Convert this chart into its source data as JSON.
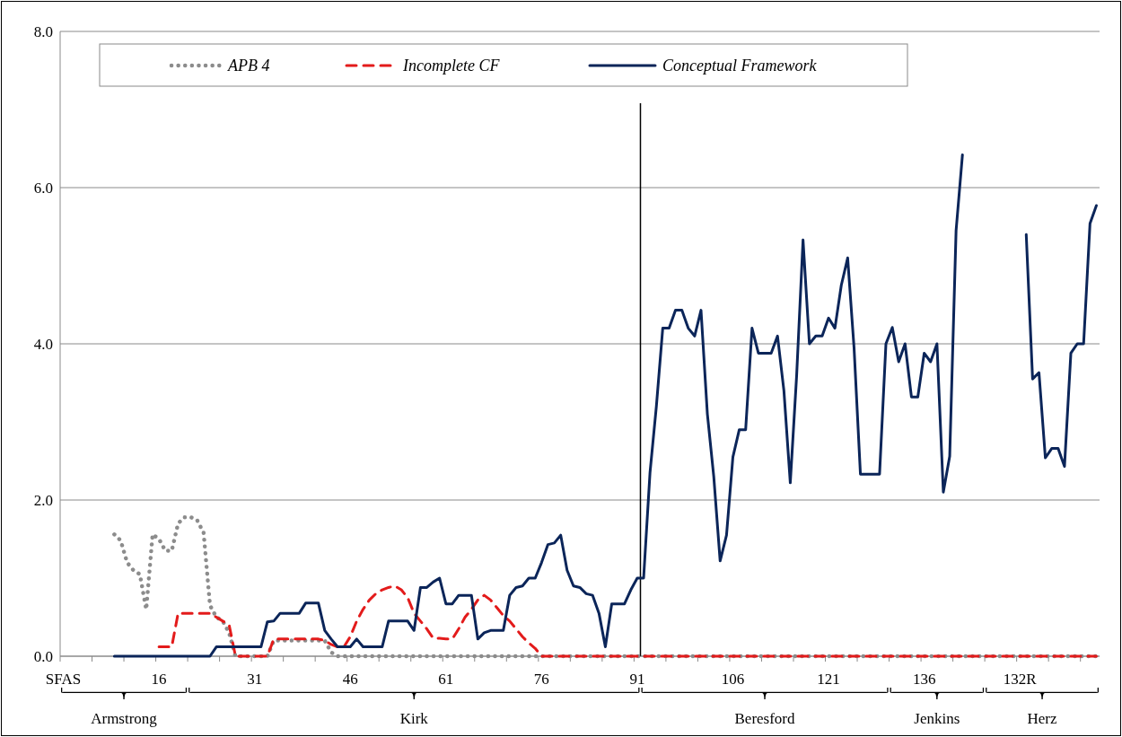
{
  "chart_data": {
    "type": "line",
    "categories": [
      "SFAS",
      null,
      null,
      null,
      null,
      null,
      null,
      null,
      null,
      null,
      null,
      null,
      null,
      null,
      null,
      "16",
      null,
      null,
      null,
      null,
      null,
      null,
      null,
      null,
      null,
      null,
      null,
      null,
      null,
      null,
      "31",
      null,
      null,
      null,
      null,
      null,
      null,
      null,
      null,
      null,
      null,
      null,
      null,
      null,
      null,
      "46",
      null,
      null,
      null,
      null,
      null,
      null,
      null,
      null,
      null,
      null,
      null,
      null,
      null,
      null,
      "61",
      null,
      null,
      null,
      null,
      null,
      null,
      null,
      null,
      null,
      null,
      null,
      null,
      null,
      null,
      "76",
      null,
      null,
      null,
      null,
      null,
      null,
      null,
      null,
      null,
      null,
      null,
      null,
      null,
      null,
      "91",
      null,
      null,
      null,
      null,
      null,
      null,
      null,
      null,
      null,
      null,
      null,
      null,
      null,
      null,
      "106",
      null,
      null,
      null,
      null,
      null,
      null,
      null,
      null,
      null,
      null,
      null,
      null,
      null,
      null,
      "121",
      null,
      null,
      null,
      null,
      null,
      null,
      null,
      null,
      null,
      null,
      null,
      null,
      null,
      null,
      "136",
      null,
      null,
      null,
      null,
      null,
      null,
      null,
      null,
      null,
      null,
      null,
      null,
      null,
      null,
      "132R",
      null,
      null,
      null,
      null,
      null,
      null,
      null,
      null,
      null,
      null,
      null,
      null
    ],
    "series": [
      {
        "name": "APB 4",
        "color": "#8c8c8c",
        "line_style": "dotted",
        "values": [
          null,
          null,
          null,
          null,
          null,
          null,
          null,
          null,
          1.56,
          1.48,
          1.2,
          1.1,
          1.05,
          0.6,
          1.56,
          1.5,
          1.35,
          1.35,
          1.7,
          1.78,
          1.78,
          1.74,
          1.58,
          0.65,
          0.5,
          0.45,
          0.3,
          0,
          0,
          0,
          0,
          0,
          0,
          0.2,
          0.2,
          0.2,
          0.2,
          0.2,
          0.2,
          0.2,
          0.2,
          0.2,
          0.05,
          0,
          0,
          0,
          0,
          0,
          0,
          0,
          0,
          0,
          0,
          0,
          0,
          0,
          0,
          0,
          0,
          0,
          0,
          0,
          0,
          0,
          0,
          0,
          0,
          0,
          0,
          0,
          0,
          0,
          0,
          0,
          0,
          0,
          0,
          0,
          0,
          0,
          0,
          0,
          0,
          0,
          0,
          0,
          0,
          0,
          0,
          0,
          0,
          0,
          0,
          0,
          0,
          0,
          0,
          0,
          0,
          0,
          0,
          0,
          0,
          0,
          0,
          0,
          0,
          0,
          0,
          0,
          0,
          0,
          0,
          0,
          0,
          0,
          0,
          0,
          0,
          0,
          0,
          0,
          0,
          0,
          0,
          0,
          0,
          0,
          0,
          0,
          0,
          0,
          0,
          0,
          0,
          0,
          0,
          0,
          0,
          0,
          0,
          0,
          0,
          0,
          0,
          0,
          0,
          0,
          0,
          0,
          0,
          0,
          0,
          0,
          0,
          0,
          0,
          0,
          0,
          0,
          0,
          0,
          0
        ]
      },
      {
        "name": "Incomplete CF",
        "color": "#e31b1b",
        "line_style": "dashed",
        "values": [
          null,
          null,
          null,
          null,
          null,
          null,
          null,
          null,
          null,
          null,
          null,
          null,
          null,
          null,
          null,
          0.12,
          0.12,
          0.12,
          0.55,
          0.55,
          0.55,
          0.55,
          0.55,
          0.55,
          0.5,
          0.45,
          0.4,
          0,
          0,
          0,
          0,
          0,
          0,
          0.22,
          0.22,
          0.22,
          0.22,
          0.22,
          0.22,
          0.22,
          0.22,
          0.2,
          0.15,
          0.12,
          0.12,
          0.25,
          0.45,
          0.6,
          0.72,
          0.8,
          0.85,
          0.88,
          0.9,
          0.85,
          0.75,
          0.55,
          0.45,
          0.35,
          0.23,
          0.23,
          0.22,
          0.22,
          0.35,
          0.5,
          0.6,
          0.72,
          0.78,
          0.72,
          0.62,
          0.52,
          0.45,
          0.35,
          0.25,
          0.17,
          0.1,
          0,
          0,
          0,
          0,
          0,
          0,
          0,
          0,
          0,
          0,
          0,
          0,
          0,
          0,
          0,
          0,
          0,
          0,
          0,
          0,
          0,
          0,
          0,
          0,
          0,
          0,
          0,
          0,
          0,
          0,
          0,
          0,
          0,
          0,
          0,
          0,
          0,
          0,
          0,
          0,
          0,
          0,
          0,
          0,
          0,
          0,
          0,
          0,
          0,
          0,
          0,
          0,
          0,
          0,
          0,
          0,
          0,
          0,
          0,
          0,
          0,
          0,
          0,
          0,
          0,
          0,
          0,
          0,
          0,
          0,
          0,
          0,
          0,
          0,
          0,
          0,
          0,
          0,
          0,
          0,
          0,
          0,
          0,
          0,
          0,
          0,
          0,
          0
        ]
      },
      {
        "name": "Conceptual Framework",
        "color": "#0b2559",
        "line_style": "solid",
        "values": [
          null,
          null,
          null,
          null,
          null,
          null,
          null,
          null,
          0,
          0,
          0,
          0,
          0,
          0,
          0,
          0,
          0,
          0,
          0,
          0,
          0,
          0,
          0,
          0,
          0.12,
          0.12,
          0.12,
          0.12,
          0.12,
          0.12,
          0.12,
          0.12,
          0.44,
          0.45,
          0.55,
          0.55,
          0.55,
          0.55,
          0.68,
          0.68,
          0.68,
          0.33,
          0.22,
          0.12,
          0.12,
          0.12,
          0.22,
          0.12,
          0.12,
          0.12,
          0.12,
          0.45,
          0.45,
          0.45,
          0.45,
          0.33,
          0.88,
          0.88,
          0.95,
          1.0,
          0.67,
          0.67,
          0.78,
          0.78,
          0.78,
          0.22,
          0.3,
          0.33,
          0.33,
          0.33,
          0.78,
          0.88,
          0.9,
          1.0,
          1.0,
          1.2,
          1.43,
          1.45,
          1.55,
          1.1,
          0.9,
          0.88,
          0.8,
          0.78,
          0.55,
          0.12,
          0.67,
          0.67,
          0.67,
          0.85,
          1.0,
          1.0,
          2.35,
          3.2,
          4.2,
          4.2,
          4.43,
          4.43,
          4.2,
          4.1,
          4.43,
          3.1,
          2.3,
          1.22,
          1.55,
          2.55,
          2.9,
          2.9,
          4.2,
          3.88,
          3.88,
          3.88,
          4.1,
          3.4,
          2.22,
          3.6,
          5.33,
          4.0,
          4.1,
          4.1,
          4.33,
          4.2,
          4.75,
          5.1,
          3.95,
          2.33,
          2.33,
          2.33,
          2.33,
          4.0,
          4.21,
          3.77,
          4.0,
          3.32,
          3.32,
          3.88,
          3.77,
          4.0,
          2.1,
          2.56,
          5.45,
          6.42,
          null,
          null,
          null,
          null,
          null,
          null,
          null,
          null,
          null,
          5.4,
          3.55,
          3.63,
          2.54,
          2.66,
          2.66,
          2.43,
          3.88,
          4.0,
          4.0,
          5.54,
          5.77
        ]
      }
    ],
    "ylim": [
      0,
      8
    ],
    "yticks": [
      {
        "value": 0,
        "label": "0.0"
      },
      {
        "value": 2,
        "label": "2.0"
      },
      {
        "value": 4,
        "label": "4.0"
      },
      {
        "value": 6,
        "label": "6.0"
      },
      {
        "value": 8,
        "label": "8.0"
      }
    ],
    "grid": "y",
    "legend": "top",
    "ref_lines": [
      {
        "axis": "x",
        "value": "91",
        "color": "#000000"
      }
    ],
    "annotations": [
      "Armstrong",
      "Kirk",
      "Beresford",
      "Jenkins",
      "Herz"
    ]
  }
}
